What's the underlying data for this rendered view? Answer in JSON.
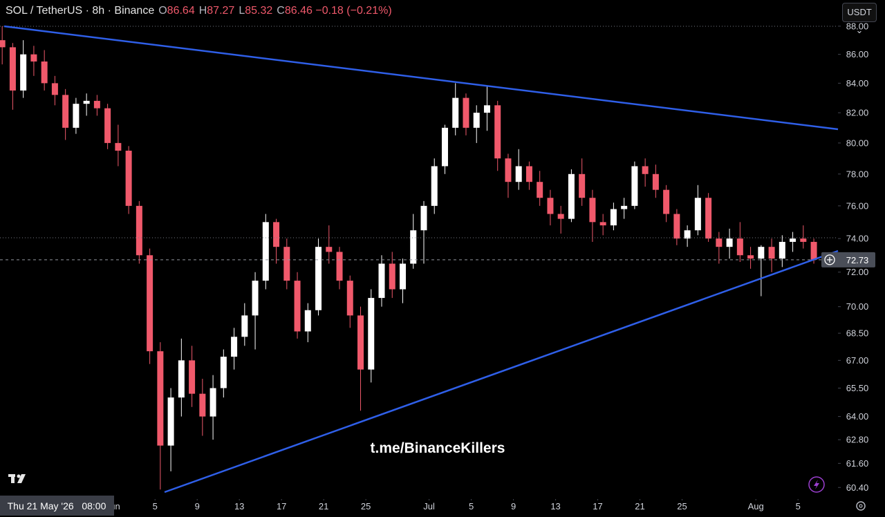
{
  "header": {
    "symbol": "SOL / TetherUS · 8h · Binance",
    "ohlc": [
      {
        "label": "O",
        "value": 86.64
      },
      {
        "label": "H",
        "value": 87.27
      },
      {
        "label": "L",
        "value": 85.32
      },
      {
        "label": "C",
        "value": 86.46
      }
    ],
    "change": "−0.18 (−0.21%)",
    "currency": "USDT"
  },
  "watermark": "t.me/BinanceKillers",
  "crosshair_time": "Thu 21 May '26   08:00",
  "chart_data": {
    "type": "candlestick",
    "log_scale": true,
    "up_color": "#ffffff",
    "down_color": "#f0596b",
    "x": [
      "2026-05-21",
      "2026-05-22",
      "2026-05-23",
      "2026-05-24",
      "2026-05-25",
      "2026-05-26",
      "2026-05-27",
      "2026-05-28",
      "2026-05-29",
      "2026-05-30",
      "2026-05-31",
      "2026-06-01",
      "2026-06-02",
      "2026-06-03",
      "2026-06-04",
      "2026-06-05",
      "2026-06-06",
      "2026-06-07",
      "2026-06-08",
      "2026-06-09",
      "2026-06-10",
      "2026-06-11",
      "2026-06-12",
      "2026-06-13",
      "2026-06-14",
      "2026-06-15",
      "2026-06-16",
      "2026-06-17",
      "2026-06-18",
      "2026-06-19",
      "2026-06-20",
      "2026-06-21",
      "2026-06-22",
      "2026-06-23",
      "2026-06-24",
      "2026-06-25",
      "2026-06-26",
      "2026-06-27",
      "2026-06-28",
      "2026-06-29",
      "2026-06-30",
      "2026-07-01",
      "2026-07-02",
      "2026-07-03",
      "2026-07-04",
      "2026-07-05",
      "2026-07-06",
      "2026-07-07",
      "2026-07-08",
      "2026-07-09",
      "2026-07-10",
      "2026-07-11",
      "2026-07-12",
      "2026-07-13",
      "2026-07-14",
      "2026-07-15",
      "2026-07-16",
      "2026-07-17",
      "2026-07-18",
      "2026-07-19",
      "2026-07-20",
      "2026-07-21",
      "2026-07-22",
      "2026-07-23",
      "2026-07-24",
      "2026-07-25",
      "2026-07-26",
      "2026-07-27",
      "2026-07-28",
      "2026-07-29",
      "2026-07-30",
      "2026-07-31",
      "2026-08-01",
      "2026-08-02",
      "2026-08-03",
      "2026-08-04",
      "2026-08-05",
      "2026-08-06"
    ],
    "open": [
      87,
      86.5,
      83.5,
      86,
      85.5,
      84,
      83.2,
      81,
      82.6,
      82.8,
      82.3,
      80,
      79.5,
      76,
      73,
      67.5,
      62.5,
      65,
      67,
      65.2,
      64,
      65.5,
      67.2,
      68.3,
      69.5,
      71.5,
      75,
      73.5,
      71.5,
      68.6,
      69.8,
      73.5,
      73.2,
      71.5,
      69.5,
      66.5,
      70.5,
      72.5,
      71,
      72.5,
      74.5,
      76,
      78.5,
      81,
      83,
      81,
      82,
      82.5,
      79,
      77.5,
      78.5,
      77.5,
      76.5,
      75.5,
      75.2,
      78,
      76.5,
      75,
      74.8,
      75.8,
      76,
      78.5,
      78,
      77,
      75.5,
      74,
      74.5,
      76.5,
      74,
      73.5,
      74,
      73,
      72.8,
      73.5,
      72.8,
      73.8,
      74,
      73.8
    ],
    "high": [
      88,
      86.8,
      87,
      86.6,
      86.3,
      84.5,
      83.6,
      83,
      83.3,
      83.2,
      82.6,
      81.2,
      79.8,
      76.3,
      73.4,
      68,
      65.5,
      68.2,
      67.8,
      66,
      66.2,
      67.6,
      68.8,
      70.2,
      72,
      75.5,
      75.2,
      74,
      72,
      70.2,
      74,
      74.8,
      73.5,
      71.8,
      70,
      71,
      73,
      73.2,
      72.8,
      75.5,
      76.3,
      79,
      81.2,
      84,
      83.3,
      82.5,
      83.8,
      82.8,
      79.3,
      79.6,
      78.8,
      78.2,
      77,
      76,
      78.3,
      79,
      77,
      75.5,
      76.2,
      76.5,
      78.8,
      79,
      78.6,
      77.3,
      75.8,
      74.8,
      77.3,
      76.8,
      74.4,
      74.6,
      75,
      73.5,
      73.6,
      74,
      74.2,
      74.4,
      74.8,
      74
    ],
    "low": [
      85.3,
      82.2,
      83,
      84.5,
      83.5,
      82.5,
      80.2,
      80.6,
      81.8,
      81.8,
      79.6,
      78.5,
      75.5,
      72.5,
      66.8,
      60.3,
      61.2,
      64,
      64.5,
      63,
      62.8,
      65,
      66.5,
      67.8,
      67.6,
      71,
      72.5,
      71,
      68.2,
      68,
      69.5,
      72.5,
      71,
      68.8,
      64.3,
      65.8,
      70,
      70.5,
      70.2,
      72.2,
      72.5,
      75.5,
      78,
      80.5,
      80.5,
      80,
      80.8,
      78.2,
      76.5,
      77,
      77,
      76,
      74.8,
      74.3,
      75,
      76,
      73.8,
      74.2,
      74.5,
      75.2,
      75.8,
      77.2,
      76.5,
      75,
      73.6,
      73.5,
      74.2,
      73.8,
      72.5,
      72.8,
      72.6,
      72.2,
      70.6,
      72,
      72.3,
      73.2,
      73.4,
      72.5
    ],
    "close": [
      86.5,
      83.5,
      86,
      85.5,
      84,
      83.2,
      81,
      82.6,
      82.8,
      82.3,
      80,
      79.5,
      76,
      73,
      67.5,
      62.5,
      65,
      67,
      65.2,
      64,
      65.5,
      67.2,
      68.3,
      69.5,
      71.5,
      75,
      73.5,
      71.5,
      68.6,
      69.8,
      73.5,
      73.2,
      71.5,
      69.5,
      66.5,
      70.5,
      72.5,
      71,
      72.5,
      74.5,
      76,
      78.5,
      81,
      83,
      81,
      82,
      82.5,
      79,
      77.5,
      78.5,
      77.5,
      76.5,
      75.5,
      75.2,
      78,
      76.5,
      75,
      74.8,
      75.8,
      76,
      78.5,
      78,
      77,
      75.5,
      74,
      74.5,
      76.5,
      74,
      73.5,
      74,
      73,
      72.8,
      73.5,
      72.8,
      73.8,
      74,
      73.8,
      72.73
    ],
    "xlim": [
      "2026-05-21T07:00:00Z",
      "2026-08-08T19:00:00Z"
    ],
    "xticks": [
      {
        "value": "2026-06-01",
        "label": "Jun"
      },
      {
        "value": "2026-06-05",
        "label": "5"
      },
      {
        "value": "2026-06-09",
        "label": "9"
      },
      {
        "value": "2026-06-13",
        "label": "13"
      },
      {
        "value": "2026-06-17",
        "label": "17"
      },
      {
        "value": "2026-06-21",
        "label": "21"
      },
      {
        "value": "2026-06-25",
        "label": "25"
      },
      {
        "value": "2026-07-01",
        "label": "Jul"
      },
      {
        "value": "2026-07-05",
        "label": "5"
      },
      {
        "value": "2026-07-09",
        "label": "9"
      },
      {
        "value": "2026-07-13",
        "label": "13"
      },
      {
        "value": "2026-07-17",
        "label": "17"
      },
      {
        "value": "2026-07-21",
        "label": "21"
      },
      {
        "value": "2026-07-25",
        "label": "25"
      },
      {
        "value": "2026-08-01",
        "label": "Aug"
      },
      {
        "value": "2026-08-05",
        "label": "5"
      }
    ],
    "ylim": [
      59.9,
      89.9
    ],
    "yticks": [
      {
        "value": 60.4,
        "label": "60.40"
      },
      {
        "value": 61.6,
        "label": "61.60"
      },
      {
        "value": 62.8,
        "label": "62.80"
      },
      {
        "value": 64,
        "label": "64.00"
      },
      {
        "value": 65.5,
        "label": "65.50"
      },
      {
        "value": 67,
        "label": "67.00"
      },
      {
        "value": 68.5,
        "label": "68.50"
      },
      {
        "value": 70,
        "label": "70.00"
      },
      {
        "value": 72,
        "label": "72.00"
      },
      {
        "value": 74,
        "label": "74.00"
      },
      {
        "value": 76,
        "label": "76.00"
      },
      {
        "value": 78,
        "label": "78.00"
      },
      {
        "value": 80,
        "label": "80.00"
      },
      {
        "value": 82,
        "label": "82.00"
      },
      {
        "value": 84,
        "label": "84.00"
      },
      {
        "value": 86,
        "label": "86.00"
      },
      {
        "value": 88,
        "label": "88.00"
      }
    ]
  }
}
